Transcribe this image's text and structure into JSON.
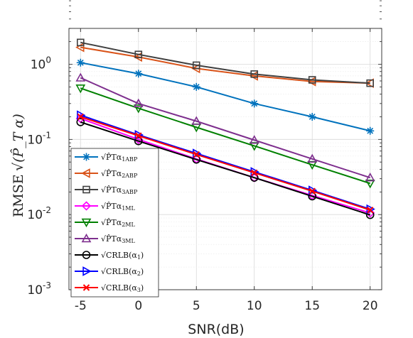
{
  "chart_data": {
    "type": "line",
    "xlabel": "SNR(dB)",
    "ylabel_prefix": "RMSE",
    "ylabel_math": "√(P̂_T α)",
    "x": [
      -5,
      0,
      5,
      10,
      15,
      20
    ],
    "x_ticks": [
      "-5",
      "0",
      "5",
      "10",
      "15",
      "20"
    ],
    "y_scale": "log",
    "ylim": [
      0.001,
      3
    ],
    "y_ticks": [
      {
        "value": 1,
        "base": "10",
        "exp": "0"
      },
      {
        "value": 0.1,
        "base": "10",
        "exp": "-1"
      },
      {
        "value": 0.01,
        "base": "10",
        "exp": "-2"
      },
      {
        "value": 0.001,
        "base": "10",
        "exp": "-3"
      }
    ],
    "grid": true,
    "legend_position": "bottom-left",
    "series": [
      {
        "name": "√(P̂_T α1) ABP",
        "leg_main": "√P̂Tα",
        "leg_idx": "1",
        "leg_sub": "ABP",
        "color": "#0072BD",
        "marker": "asterisk",
        "values": [
          1.05,
          0.75,
          0.5,
          0.3,
          0.2,
          0.13
        ]
      },
      {
        "name": "√(P̂_T α2) ABP",
        "leg_main": "√P̂Tα",
        "leg_idx": "2",
        "leg_sub": "ABP",
        "color": "#D95319",
        "marker": "triangle-left",
        "values": [
          1.68,
          1.25,
          0.88,
          0.7,
          0.59,
          0.56
        ]
      },
      {
        "name": "√(P̂_T α3) ABP",
        "leg_main": "√P̂Tα",
        "leg_idx": "3",
        "leg_sub": "ABP",
        "color": "#404040",
        "marker": "square",
        "values": [
          1.95,
          1.35,
          0.97,
          0.74,
          0.62,
          0.56
        ]
      },
      {
        "name": "√(P̂_T α1) ML",
        "leg_main": "√P̂Tα",
        "leg_idx": "1",
        "leg_sub": "ML",
        "color": "#FF00FF",
        "marker": "diamond",
        "values": [
          0.19,
          0.1,
          0.055,
          0.031,
          0.018,
          0.0105
        ]
      },
      {
        "name": "√(P̂_T α2) ML",
        "leg_main": "√P̂Tα",
        "leg_idx": "2",
        "leg_sub": "ML",
        "color": "#008000",
        "marker": "triangle-down",
        "values": [
          0.48,
          0.26,
          0.145,
          0.082,
          0.046,
          0.026
        ]
      },
      {
        "name": "√(P̂_T α3) ML",
        "leg_main": "√P̂Tα",
        "leg_idx": "3",
        "leg_sub": "ML",
        "color": "#7E2F8E",
        "marker": "triangle-up",
        "values": [
          0.66,
          0.3,
          0.175,
          0.098,
          0.055,
          0.031
        ]
      },
      {
        "name": "√CRLB(α1)",
        "leg_main": "√CRLB(α",
        "leg_idx": "1",
        "leg_sub": ")",
        "color": "#000000",
        "marker": "circle",
        "values": [
          0.17,
          0.095,
          0.054,
          0.031,
          0.0175,
          0.0099
        ]
      },
      {
        "name": "√CRLB(α2)",
        "leg_main": "√CRLB(α",
        "leg_idx": "2",
        "leg_sub": ")",
        "color": "#0000FF",
        "marker": "triangle-right",
        "values": [
          0.21,
          0.115,
          0.065,
          0.037,
          0.021,
          0.0118
        ]
      },
      {
        "name": "√CRLB(α3)",
        "leg_main": "√CRLB(α",
        "leg_idx": "3",
        "leg_sub": ")",
        "color": "#FF0000",
        "marker": "x",
        "values": [
          0.2,
          0.112,
          0.063,
          0.036,
          0.0205,
          0.0115
        ]
      }
    ]
  }
}
